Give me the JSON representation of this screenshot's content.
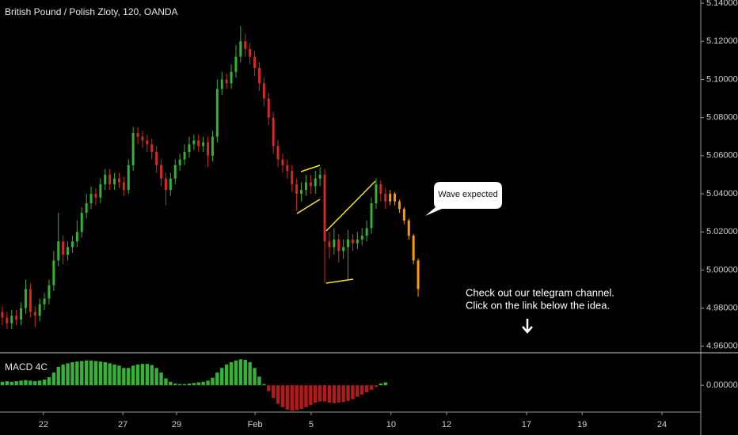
{
  "chart_data": [
    {
      "type": "candlestick",
      "title": "British Pound / Polish Zloty, 120, OANDA",
      "annotations": [
        "Wave expected",
        "Check out our telegram channel.",
        "Click on the link below the idea."
      ],
      "xlim": [
        -0.5,
        149.5
      ],
      "ylim": [
        4.957,
        5.1417
      ],
      "yticks": [
        {
          "value": 4.96,
          "label": "4.96000"
        },
        {
          "value": 4.98,
          "label": "4.98000"
        },
        {
          "value": 5.0,
          "label": "5.00000"
        },
        {
          "value": 5.02,
          "label": "5.02000"
        },
        {
          "value": 5.04,
          "label": "5.04000"
        },
        {
          "value": 5.06,
          "label": "5.06000"
        },
        {
          "value": 5.08,
          "label": "5.08000"
        },
        {
          "value": 5.1,
          "label": "5.10000"
        },
        {
          "value": 5.12,
          "label": "5.12000"
        },
        {
          "value": 5.14,
          "label": "5.14000"
        }
      ],
      "series": [
        {
          "up_color": "#33b233",
          "down_color": "#d42a1e",
          "x": [
            0,
            1,
            2,
            3,
            4,
            5,
            6,
            7,
            8,
            9,
            10,
            11,
            12,
            13,
            14,
            15,
            16,
            17,
            18,
            19,
            20,
            21,
            22,
            23,
            24,
            25,
            26,
            27,
            28,
            29,
            30,
            31,
            32,
            33,
            34,
            35,
            36,
            37,
            38,
            39,
            40,
            41,
            42,
            43,
            44,
            45,
            46,
            47,
            48,
            49,
            50,
            51,
            52,
            53,
            54,
            55,
            56,
            57,
            58,
            59,
            60,
            61,
            62,
            63,
            64,
            65,
            66,
            67,
            68,
            69,
            70,
            71,
            72,
            73,
            74,
            75,
            76,
            77,
            78,
            79,
            80,
            81,
            82
          ],
          "open": [
            4.978,
            4.975,
            4.972,
            4.976,
            4.974,
            4.98,
            4.99,
            4.978,
            4.976,
            4.982,
            4.985,
            4.992,
            5.005,
            5.015,
            5.008,
            5.012,
            5.015,
            5.02,
            5.03,
            5.035,
            5.04,
            5.038,
            5.045,
            5.05,
            5.045,
            5.048,
            5.046,
            5.042,
            5.055,
            5.072,
            5.07,
            5.068,
            5.066,
            5.062,
            5.055,
            5.048,
            5.042,
            5.048,
            5.055,
            5.058,
            5.062,
            5.066,
            5.068,
            5.065,
            5.067,
            5.06,
            5.07,
            5.095,
            5.1,
            5.098,
            5.104,
            5.112,
            5.12,
            5.116,
            5.112,
            5.106,
            5.098,
            5.09,
            5.08,
            5.065,
            5.058,
            5.055,
            5.052,
            5.045,
            5.04,
            5.042,
            5.046,
            5.044,
            5.048,
            5.05,
            5.015,
            5.012,
            5.016,
            5.01,
            5.012,
            5.016,
            5.014,
            5.016,
            5.018,
            5.022,
            5.035,
            5.045,
            5.04
          ],
          "high": [
            4.981,
            4.978,
            4.979,
            4.979,
            4.983,
            4.995,
            4.993,
            4.981,
            4.985,
            4.988,
            4.995,
            5.01,
            5.03,
            5.018,
            5.015,
            5.018,
            5.026,
            5.033,
            5.04,
            5.044,
            5.043,
            5.048,
            5.053,
            5.053,
            5.051,
            5.051,
            5.049,
            5.058,
            5.075,
            5.075,
            5.073,
            5.071,
            5.069,
            5.065,
            5.058,
            5.051,
            5.051,
            5.058,
            5.061,
            5.066,
            5.07,
            5.071,
            5.071,
            5.07,
            5.07,
            5.073,
            5.1,
            5.104,
            5.103,
            5.108,
            5.118,
            5.128,
            5.124,
            5.119,
            5.115,
            5.109,
            5.101,
            5.093,
            5.083,
            5.068,
            5.061,
            5.058,
            5.055,
            5.048,
            5.046,
            5.05,
            5.05,
            5.052,
            5.054,
            5.053,
            5.02,
            5.022,
            5.019,
            5.016,
            5.021,
            5.019,
            5.02,
            5.022,
            5.026,
            5.038,
            5.048,
            5.047,
            5.043
          ],
          "low": [
            4.971,
            4.969,
            4.969,
            4.971,
            4.971,
            4.977,
            4.975,
            4.97,
            4.973,
            4.979,
            4.982,
            4.989,
            5.002,
            5.003,
            5.005,
            5.009,
            5.012,
            5.017,
            5.027,
            5.032,
            5.034,
            5.035,
            5.042,
            5.042,
            5.042,
            5.043,
            5.039,
            5.04,
            5.052,
            5.066,
            5.064,
            5.062,
            5.058,
            5.051,
            5.044,
            5.034,
            5.039,
            5.045,
            5.052,
            5.055,
            5.059,
            5.063,
            5.062,
            5.062,
            5.054,
            5.057,
            5.067,
            5.092,
            5.095,
            5.095,
            5.101,
            5.109,
            5.112,
            5.108,
            5.102,
            5.094,
            5.086,
            5.076,
            5.061,
            5.054,
            5.051,
            5.048,
            5.041,
            5.031,
            5.036,
            5.039,
            5.04,
            5.04,
            5.044,
            4.993,
            5.006,
            5.008,
            5.004,
            5.006,
            4.995,
            5.01,
            5.011,
            5.013,
            5.015,
            5.019,
            5.032,
            5.036,
            5.032
          ],
          "close": [
            4.975,
            4.972,
            4.976,
            4.974,
            4.98,
            4.99,
            4.978,
            4.976,
            4.982,
            4.985,
            4.992,
            5.005,
            5.015,
            5.008,
            5.012,
            5.015,
            5.02,
            5.03,
            5.035,
            5.04,
            5.038,
            5.045,
            5.05,
            5.045,
            5.048,
            5.046,
            5.042,
            5.055,
            5.072,
            5.07,
            5.068,
            5.066,
            5.062,
            5.055,
            5.048,
            5.042,
            5.048,
            5.055,
            5.058,
            5.062,
            5.066,
            5.068,
            5.065,
            5.067,
            5.06,
            5.07,
            5.095,
            5.1,
            5.098,
            5.104,
            5.112,
            5.12,
            5.116,
            5.112,
            5.106,
            5.098,
            5.09,
            5.08,
            5.065,
            5.058,
            5.055,
            5.052,
            5.045,
            5.04,
            5.042,
            5.046,
            5.044,
            5.048,
            5.05,
            5.015,
            5.012,
            5.016,
            5.01,
            5.012,
            5.016,
            5.014,
            5.016,
            5.018,
            5.022,
            5.035,
            5.045,
            5.04,
            5.036
          ]
        },
        {
          "color": "#ff9800",
          "x": [
            83,
            84,
            85,
            86,
            87,
            88,
            89
          ],
          "open": [
            5.036,
            5.04,
            5.036,
            5.032,
            5.026,
            5.018,
            5.005
          ],
          "high": [
            5.042,
            5.041,
            5.037,
            5.033,
            5.027,
            5.019,
            5.006
          ],
          "low": [
            5.034,
            5.034,
            5.03,
            5.024,
            5.016,
            5.003,
            4.986
          ],
          "close": [
            5.04,
            5.036,
            5.032,
            5.026,
            5.018,
            5.005,
            4.99
          ]
        }
      ]
    },
    {
      "type": "bar",
      "title": "MACD 4C",
      "xlim": [
        -0.5,
        149.5
      ],
      "ylim": [
        -0.0045,
        0.0055
      ],
      "yticks": [
        {
          "value": 0,
          "label": "0.00000"
        }
      ],
      "xticks": [
        {
          "value": 8.8,
          "label": "22"
        },
        {
          "value": 25.8,
          "label": "27"
        },
        {
          "value": 37.3,
          "label": "29"
        },
        {
          "value": 54.1,
          "label": "Feb"
        },
        {
          "value": 66.1,
          "label": "5"
        },
        {
          "value": 83.2,
          "label": "10"
        },
        {
          "value": 95.1,
          "label": "12"
        },
        {
          "value": 112.2,
          "label": "17"
        },
        {
          "value": 124.1,
          "label": "19"
        },
        {
          "value": 141.2,
          "label": "24"
        }
      ],
      "positive_color": "#36b336",
      "negative_color": "#b31b1b",
      "x": [
        0,
        1,
        2,
        3,
        4,
        5,
        6,
        7,
        8,
        9,
        10,
        11,
        12,
        13,
        14,
        15,
        16,
        17,
        18,
        19,
        20,
        21,
        22,
        23,
        24,
        25,
        26,
        27,
        28,
        29,
        30,
        31,
        32,
        33,
        34,
        35,
        36,
        37,
        38,
        39,
        40,
        41,
        42,
        43,
        44,
        45,
        46,
        47,
        48,
        49,
        50,
        51,
        52,
        53,
        54,
        55,
        56,
        57,
        58,
        59,
        60,
        61,
        62,
        63,
        64,
        65,
        66,
        67,
        68,
        69,
        70,
        71,
        72,
        73,
        74,
        75,
        76,
        77,
        78,
        79,
        80,
        81,
        82
      ],
      "values": [
        0.0006,
        0.0007,
        0.0006,
        0.0007,
        0.0008,
        0.0009,
        0.0008,
        0.0007,
        0.0008,
        0.001,
        0.0014,
        0.0022,
        0.0032,
        0.0036,
        0.0038,
        0.004,
        0.0041,
        0.0042,
        0.0043,
        0.0043,
        0.0042,
        0.0041,
        0.004,
        0.0038,
        0.0036,
        0.0034,
        0.003,
        0.003,
        0.0034,
        0.0036,
        0.0037,
        0.0037,
        0.0035,
        0.003,
        0.0022,
        0.0012,
        0.0006,
        0.0003,
        0.0002,
        0.0002,
        0.0003,
        0.0004,
        0.0005,
        0.0006,
        0.0008,
        0.0013,
        0.0022,
        0.003,
        0.0036,
        0.004,
        0.0043,
        0.0045,
        0.0044,
        0.004,
        0.003,
        0.0015,
        0.0002,
        -0.001,
        -0.0022,
        -0.0032,
        -0.0038,
        -0.0042,
        -0.0044,
        -0.0043,
        -0.0041,
        -0.0038,
        -0.0034,
        -0.003,
        -0.0028,
        -0.0028,
        -0.003,
        -0.0031,
        -0.003,
        -0.0029,
        -0.0027,
        -0.0024,
        -0.002,
        -0.0016,
        -0.0012,
        -0.0008,
        -0.0003,
        0.0003,
        0.0005
      ]
    }
  ]
}
